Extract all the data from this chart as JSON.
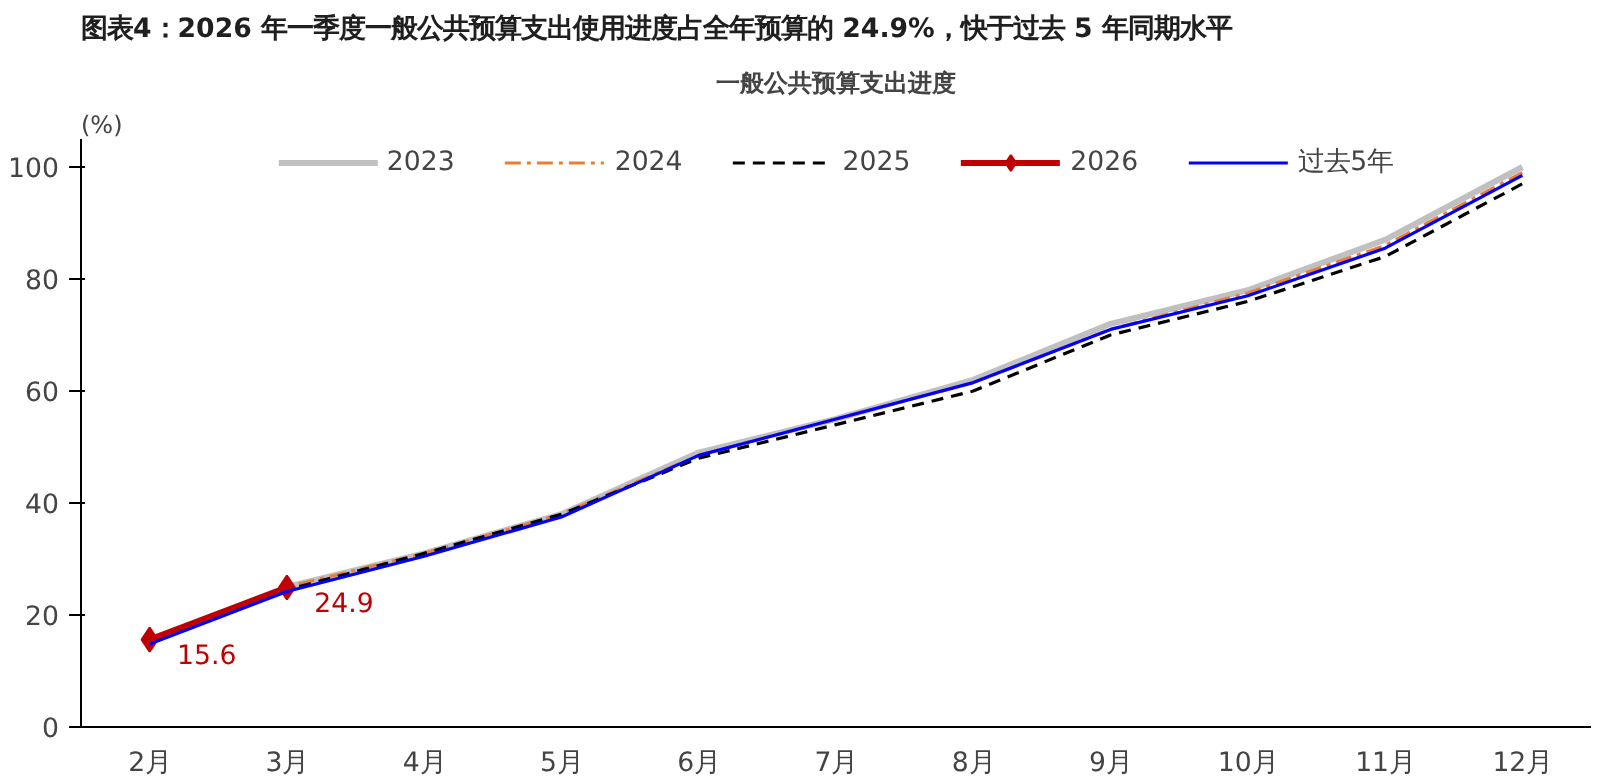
{
  "chart_data": {
    "type": "line",
    "title": "图表4：2026 年一季度一般公共预算支出使用进度占全年预算的 24.9%，快于过去 5 年同期水平",
    "subtitle": "一般公共预算支出进度",
    "ylabel": "(%)",
    "categories": [
      "2月",
      "3月",
      "4月",
      "5月",
      "6月",
      "7月",
      "8月",
      "9月",
      "10月",
      "11月",
      "12月"
    ],
    "ylim": [
      0,
      105
    ],
    "yticks": [
      0,
      20,
      40,
      60,
      80,
      100
    ],
    "grid": false,
    "legend": "top",
    "series": [
      {
        "name": "2023",
        "color": "#c0c0c0",
        "line_style": "solid",
        "values": [
          15.3,
          25,
          31,
          38,
          49,
          55,
          62,
          72,
          78,
          87,
          100
        ]
      },
      {
        "name": "2024",
        "color": "#ed7d31",
        "line_style": "dashdot",
        "values": [
          15.2,
          25,
          31,
          38,
          48.5,
          55,
          61.5,
          71,
          77.5,
          86,
          99
        ]
      },
      {
        "name": "2025",
        "color": "#000000",
        "line_style": "dashed",
        "values": [
          15,
          24.5,
          31,
          38,
          48,
          54,
          60,
          70,
          76,
          84,
          97
        ]
      },
      {
        "name": "2026",
        "color": "#c00000",
        "line_style": "solid",
        "marker": "diamond",
        "values": [
          15.6,
          24.9,
          null,
          null,
          null,
          null,
          null,
          null,
          null,
          null,
          null
        ],
        "value_labels": [
          "15.6",
          "24.9",
          null,
          null,
          null,
          null,
          null,
          null,
          null,
          null,
          null
        ]
      },
      {
        "name": "过去5年",
        "color": "#0000ff",
        "line_style": "solid",
        "values": [
          14.8,
          24.2,
          30.5,
          37.5,
          48.5,
          55,
          61.5,
          71,
          77,
          85.5,
          98.5
        ]
      }
    ]
  }
}
